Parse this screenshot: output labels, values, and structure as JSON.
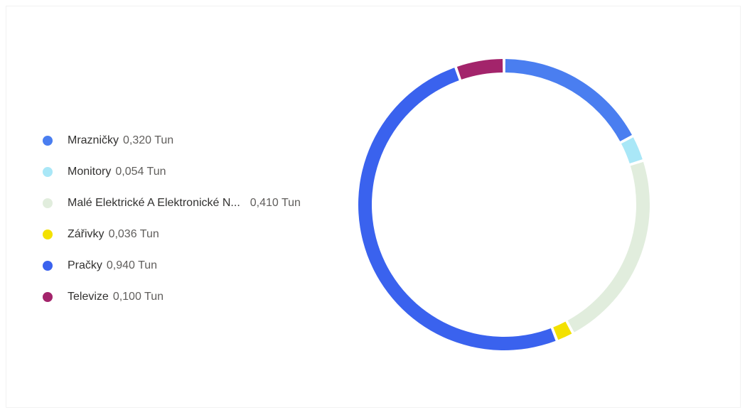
{
  "chart_data": {
    "type": "pie",
    "donut": true,
    "unit": "Tun",
    "legend_position": "left",
    "series": [
      {
        "name": "Mrazničky",
        "value": 0.32,
        "value_label": "0,320 Tun",
        "color": "#4a7ef0"
      },
      {
        "name": "Monitory",
        "value": 0.054,
        "value_label": "0,054 Tun",
        "color": "#a9e7f7"
      },
      {
        "name": "Malé Elektrické A Elektronické N...",
        "value": 0.41,
        "value_label": "0,410 Tun",
        "color": "#e1eddd"
      },
      {
        "name": "Zářivky",
        "value": 0.036,
        "value_label": "0,036 Tun",
        "color": "#f3e100"
      },
      {
        "name": "Pračky",
        "value": 0.94,
        "value_label": "0,940 Tun",
        "color": "#3a62ee"
      },
      {
        "name": "Televize",
        "value": 0.1,
        "value_label": "0,100 Tun",
        "color": "#a3246b"
      }
    ]
  }
}
